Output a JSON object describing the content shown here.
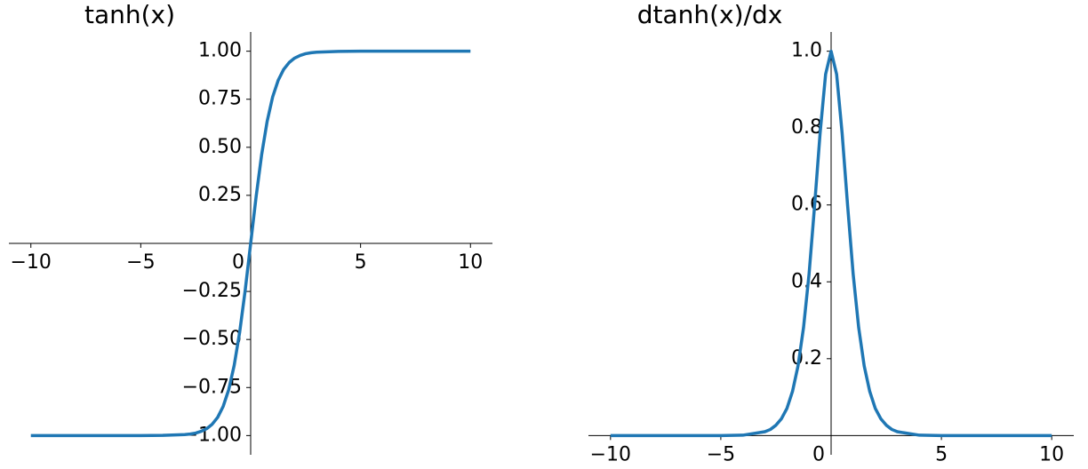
{
  "chart_data": [
    {
      "type": "line",
      "title": "tanh(x)",
      "x": [
        -10,
        -9,
        -8,
        -7,
        -6,
        -5,
        -4,
        -3,
        -2.75,
        -2.5,
        -2.25,
        -2,
        -1.75,
        -1.5,
        -1.25,
        -1,
        -0.75,
        -0.5,
        -0.25,
        0,
        0.25,
        0.5,
        0.75,
        1,
        1.25,
        1.5,
        1.75,
        2,
        2.25,
        2.5,
        2.75,
        3,
        4,
        5,
        6,
        7,
        8,
        9,
        10
      ],
      "series": [
        {
          "name": "tanh",
          "color": "#1f77b4",
          "values": [
            -1,
            -1,
            -1,
            -1,
            -1,
            -1,
            -0.999,
            -0.995,
            -0.992,
            -0.987,
            -0.978,
            -0.964,
            -0.941,
            -0.905,
            -0.848,
            -0.762,
            -0.635,
            -0.462,
            -0.245,
            0,
            0.245,
            0.462,
            0.635,
            0.762,
            0.848,
            0.905,
            0.941,
            0.964,
            0.978,
            0.987,
            0.992,
            0.995,
            0.999,
            1,
            1,
            1,
            1,
            1,
            1
          ]
        }
      ],
      "xlim": [
        -11,
        11
      ],
      "ylim": [
        -1.1,
        1.1
      ],
      "xticks": [
        {
          "value": -10,
          "label": "−10"
        },
        {
          "value": -5,
          "label": "−5"
        },
        0,
        5,
        10
      ],
      "yticks": [
        {
          "value": -1,
          "label": "−1.00"
        },
        {
          "value": -0.75,
          "label": "−0.75"
        },
        {
          "value": -0.5,
          "label": "−0.50"
        },
        {
          "value": -0.25,
          "label": "−0.25"
        },
        {
          "value": 0.25,
          "label": "0.25"
        },
        {
          "value": 0.5,
          "label": "0.50"
        },
        {
          "value": 0.75,
          "label": "0.75"
        },
        {
          "value": 1,
          "label": "1.00"
        }
      ]
    },
    {
      "type": "line",
      "title": "dtanh(x)/dx",
      "x": [
        -10,
        -9,
        -8,
        -7,
        -6,
        -5,
        -4,
        -3,
        -2.75,
        -2.5,
        -2.25,
        -2,
        -1.75,
        -1.5,
        -1.25,
        -1,
        -0.75,
        -0.5,
        -0.25,
        0,
        0.25,
        0.5,
        0.75,
        1,
        1.25,
        1.5,
        1.75,
        2,
        2.25,
        2.5,
        2.75,
        3,
        4,
        5,
        6,
        7,
        8,
        9,
        10
      ],
      "series": [
        {
          "name": "dtanh/dx",
          "color": "#1f77b4",
          "values": [
            0,
            0,
            0,
            0,
            0,
            0,
            0.001,
            0.01,
            0.016,
            0.027,
            0.044,
            0.071,
            0.115,
            0.181,
            0.281,
            0.42,
            0.597,
            0.786,
            0.94,
            1,
            0.94,
            0.786,
            0.597,
            0.42,
            0.281,
            0.181,
            0.115,
            0.071,
            0.044,
            0.027,
            0.016,
            0.01,
            0.001,
            0,
            0,
            0,
            0,
            0,
            0
          ]
        }
      ],
      "xlim": [
        -11,
        11
      ],
      "ylim": [
        -0.05,
        1.05
      ],
      "xticks": [
        {
          "value": -10,
          "label": "−10"
        },
        {
          "value": -5,
          "label": "−5"
        },
        0,
        5,
        10
      ],
      "yticks": [
        0.2,
        0.4,
        0.6,
        0.8,
        {
          "value": 1,
          "label": "1.0"
        }
      ]
    }
  ]
}
